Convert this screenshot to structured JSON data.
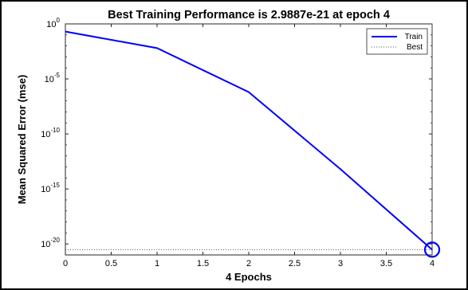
{
  "chart_data": {
    "type": "line",
    "title": "Best Training Performance is 2.9887e-21 at epoch 4",
    "xlabel": "4 Epochs",
    "ylabel": "Mean Squared Error  (mse)",
    "xlim": [
      0,
      4
    ],
    "ylim_log10": [
      -21,
      0
    ],
    "y_scale": "log",
    "grid": false,
    "legend_placement": "top-right",
    "x_ticks": [
      "0",
      "0.5",
      "1",
      "1.5",
      "2",
      "2.5",
      "3",
      "3.5",
      "4"
    ],
    "y_ticks": [
      {
        "base": "10",
        "exp": "0",
        "log10": 0
      },
      {
        "base": "10",
        "exp": "-5",
        "log10": -5
      },
      {
        "base": "10",
        "exp": "-10",
        "log10": -10
      },
      {
        "base": "10",
        "exp": "-15",
        "log10": -15
      },
      {
        "base": "10",
        "exp": "-20",
        "log10": -20
      }
    ],
    "series": [
      {
        "name": "Train",
        "color": "#0000ff",
        "style": "solid",
        "x": [
          0,
          1,
          2,
          3,
          4
        ],
        "y_log10": [
          -0.7,
          -2.2,
          -6.2,
          -13.2,
          -20.52
        ]
      },
      {
        "name": "Best",
        "color": "#555555",
        "style": "dotted"
      }
    ],
    "best_point": {
      "epoch": 4,
      "value": "2.9887e-21",
      "marker": "circle",
      "color": "#0000ff"
    }
  }
}
